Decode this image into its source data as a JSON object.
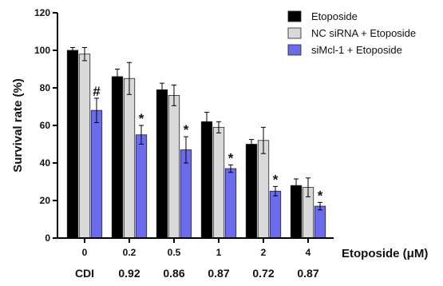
{
  "chart_data": {
    "type": "bar",
    "title": "",
    "xlabel": "Etoposide (μM)",
    "ylabel": "Survival rate (%)",
    "ylim": [
      0,
      120
    ],
    "yticks": [
      "0",
      "20",
      "40",
      "60",
      "80",
      "100",
      "120"
    ],
    "categories": [
      "0",
      "0.2",
      "0.5",
      "1",
      "2",
      "4"
    ],
    "cdi_label": "CDI",
    "cdi_values": [
      "0.92",
      "0.86",
      "0.87",
      "0.72",
      "0.87"
    ],
    "grid": false,
    "legend_position": "top-right",
    "series": [
      {
        "name": "Etoposide",
        "color": "#000000",
        "values": [
          100,
          86,
          79,
          62,
          50,
          28
        ],
        "errors": [
          1.5,
          4,
          3.5,
          5,
          2.5,
          3.5
        ],
        "marks": [
          "",
          "",
          "",
          "",
          "",
          ""
        ]
      },
      {
        "name": "NC siRNA + Etoposide",
        "color": "#d9d9d9",
        "values": [
          98,
          85,
          76,
          59,
          52,
          27
        ],
        "errors": [
          3.5,
          8.5,
          5.5,
          3,
          7,
          5
        ],
        "marks": [
          "",
          "",
          "",
          "",
          "",
          ""
        ]
      },
      {
        "name": "siMcl-1 + Etoposide",
        "color": "#6b6bf0",
        "values": [
          68,
          55,
          47,
          37,
          25,
          17
        ],
        "errors": [
          6.5,
          5,
          7,
          2,
          2.5,
          2
        ],
        "marks": [
          "#",
          "*",
          "*",
          "*",
          "*",
          "*"
        ]
      }
    ]
  }
}
